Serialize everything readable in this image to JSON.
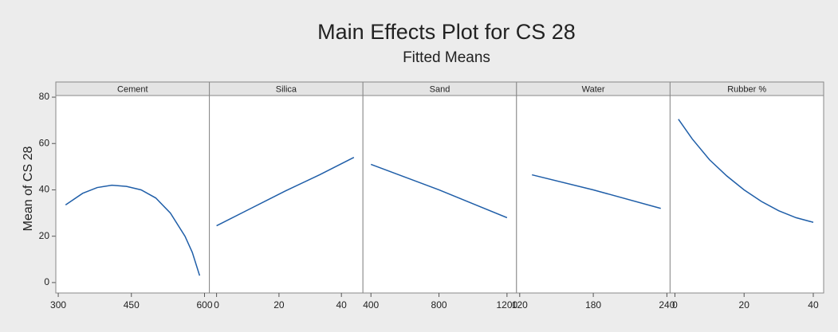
{
  "chart_data": {
    "type": "line",
    "title": "Main Effects Plot for CS 28",
    "subtitle": "Fitted Means",
    "y_label": "Mean of CS 28",
    "color": "#1f5ea8",
    "ylim": [
      -4.5,
      80.7
    ],
    "yticks": [
      0,
      20,
      40,
      60,
      80
    ],
    "panels": [
      {
        "name": "Cement",
        "x": [
          315,
          350,
          380,
          410,
          440,
          470,
          500,
          530,
          560,
          575,
          590
        ],
        "values": [
          33.5,
          38.5,
          41,
          42,
          41.5,
          40,
          36.5,
          30,
          20,
          13,
          3
        ],
        "xlim": [
          295,
          610
        ],
        "xticks": [
          300,
          450,
          600
        ]
      },
      {
        "name": "Silica",
        "x": [
          0,
          11,
          22,
          33,
          44
        ],
        "values": [
          24.5,
          32,
          39.5,
          46.5,
          54
        ],
        "xlim": [
          -2.3,
          46.9
        ],
        "xticks": [
          0,
          20,
          40
        ]
      },
      {
        "name": "Sand",
        "x": [
          400,
          600,
          800,
          1000,
          1200
        ],
        "values": [
          51,
          45.5,
          40,
          34,
          28
        ],
        "xlim": [
          353,
          1256
        ],
        "xticks": [
          400,
          800,
          1200
        ]
      },
      {
        "name": "Water",
        "x": [
          130,
          180,
          235
        ],
        "values": [
          46.5,
          40,
          32
        ],
        "xlim": [
          117.4,
          242.6
        ],
        "xticks": [
          120,
          180,
          240
        ]
      },
      {
        "name": "Rubber %",
        "x": [
          1,
          5,
          10,
          15,
          20,
          25,
          30,
          35,
          40
        ],
        "values": [
          70.5,
          62,
          53,
          46,
          40,
          35,
          31,
          28,
          26
        ],
        "xlim": [
          -1.4,
          43
        ],
        "xticks": [
          0,
          20,
          40
        ]
      }
    ]
  }
}
